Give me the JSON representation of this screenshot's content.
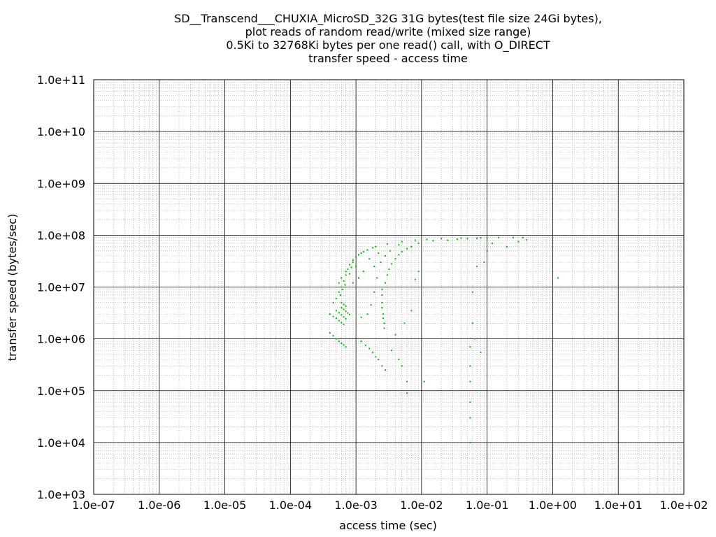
{
  "chart_data": {
    "type": "scatter",
    "title_lines": [
      "SD__Transcend___CHUXIA_MicroSD_32G 31G bytes(test file size 24Gi bytes),",
      "plot reads of random read/write (mixed size range)",
      "0.5Ki to 32768Ki bytes per one read() call, with O_DIRECT",
      "transfer speed - access time"
    ],
    "xlabel": "access time (sec)",
    "ylabel": "transfer speed (bytes/sec)",
    "x_scale": "log",
    "y_scale": "log",
    "xlim": [
      1e-07,
      100
    ],
    "ylim": [
      1000,
      100000000000.0
    ],
    "x_ticks": [
      "1.0e-07",
      "1.0e-06",
      "1.0e-05",
      "1.0e-04",
      "1.0e-03",
      "1.0e-02",
      "1.0e-01",
      "1.0e+00",
      "1.0e+01",
      "1.0e+02"
    ],
    "y_ticks": [
      "1.0e+03",
      "1.0e+04",
      "1.0e+05",
      "1.0e+06",
      "1.0e+07",
      "1.0e+08",
      "1.0e+09",
      "1.0e+10",
      "1.0e+11"
    ],
    "grid": true,
    "series_color": "#00bb00",
    "points": [
      [
        0.0004,
        1300000
      ],
      [
        0.00045,
        1150000
      ],
      [
        0.0005,
        1000000
      ],
      [
        0.00055,
        900000
      ],
      [
        0.0006,
        820000
      ],
      [
        0.00065,
        760000
      ],
      [
        0.0007,
        700000
      ],
      [
        0.0004,
        3000000
      ],
      [
        0.00045,
        2700000
      ],
      [
        0.0005,
        2500000
      ],
      [
        0.00055,
        2250000
      ],
      [
        0.0006,
        2050000
      ],
      [
        0.00065,
        1900000
      ],
      [
        0.0005,
        3500000
      ],
      [
        0.00055,
        3200000
      ],
      [
        0.0006,
        2900000
      ],
      [
        0.00065,
        2650000
      ],
      [
        0.0007,
        2450000
      ],
      [
        0.0006,
        4000000
      ],
      [
        0.00065,
        3700000
      ],
      [
        0.0007,
        3400000
      ],
      [
        0.00075,
        3150000
      ],
      [
        0.0008,
        2950000
      ],
      [
        0.0006,
        5000000
      ],
      [
        0.00065,
        4600000
      ],
      [
        0.0007,
        4300000
      ],
      [
        0.00045,
        5000000
      ],
      [
        0.0005,
        6000000
      ],
      [
        0.00055,
        8000000
      ],
      [
        0.0006,
        10000000
      ],
      [
        0.00065,
        13000000
      ],
      [
        0.0007,
        17000000
      ],
      [
        0.00075,
        22000000
      ],
      [
        0.0008,
        27000000
      ],
      [
        0.0009,
        33000000
      ],
      [
        0.001,
        38000000
      ],
      [
        0.0012,
        45000000
      ],
      [
        0.0015,
        52000000
      ],
      [
        0.002,
        60000000
      ],
      [
        0.003,
        68000000
      ],
      [
        0.005,
        75000000
      ],
      [
        0.008,
        80000000
      ],
      [
        0.012,
        83000000
      ],
      [
        0.02,
        86000000
      ],
      [
        0.04,
        88000000
      ],
      [
        0.08,
        89000000
      ],
      [
        0.15,
        90000000
      ],
      [
        0.25,
        90000000
      ],
      [
        0.35,
        90000000
      ],
      [
        0.00055,
        12000000
      ],
      [
        0.0006,
        15000000
      ],
      [
        0.00062,
        9000000
      ],
      [
        0.00058,
        7000000
      ],
      [
        0.0007,
        20000000
      ],
      [
        0.00068,
        11000000
      ],
      [
        0.0008,
        18000000
      ],
      [
        0.00085,
        24000000
      ],
      [
        0.0009,
        30000000
      ],
      [
        0.0011,
        42000000
      ],
      [
        0.0013,
        48000000
      ],
      [
        0.0018,
        57000000
      ],
      [
        0.0025,
        9000000
      ],
      [
        0.0025,
        7000000
      ],
      [
        0.0025,
        5000000
      ],
      [
        0.0025,
        4000000
      ],
      [
        0.0026,
        3000000
      ],
      [
        0.0026,
        2500000
      ],
      [
        0.0027,
        2000000
      ],
      [
        0.0027,
        1600000
      ],
      [
        0.0028,
        12000000
      ],
      [
        0.003,
        17000000
      ],
      [
        0.0032,
        22000000
      ],
      [
        0.0035,
        28000000
      ],
      [
        0.004,
        35000000
      ],
      [
        0.0045,
        42000000
      ],
      [
        0.005,
        48000000
      ],
      [
        0.006,
        55000000
      ],
      [
        0.007,
        60000000
      ],
      [
        0.0025,
        300000
      ],
      [
        0.0022,
        400000
      ],
      [
        0.002,
        450000
      ],
      [
        0.0018,
        550000
      ],
      [
        0.0016,
        650000
      ],
      [
        0.0014,
        750000
      ],
      [
        0.0012,
        900000
      ],
      [
        0.0028,
        250000
      ],
      [
        0.0015,
        3000000
      ],
      [
        0.0012,
        2600000
      ],
      [
        0.0017,
        4500000
      ],
      [
        0.0019,
        8000000
      ],
      [
        0.0021,
        15000000
      ],
      [
        0.0035,
        600000
      ],
      [
        0.004,
        1200000
      ],
      [
        0.0045,
        400000
      ],
      [
        0.005,
        300000
      ],
      [
        0.006,
        150000
      ],
      [
        0.006,
        90000
      ],
      [
        0.0055,
        2000000
      ],
      [
        0.007,
        3500000
      ],
      [
        0.008,
        14000000
      ],
      [
        0.009,
        20000000
      ],
      [
        0.011,
        150000
      ],
      [
        0.055,
        700000
      ],
      [
        0.055,
        300000
      ],
      [
        0.055,
        150000
      ],
      [
        0.055,
        60000
      ],
      [
        0.055,
        30000
      ],
      [
        0.055,
        10000
      ],
      [
        0.06,
        2000000
      ],
      [
        0.065,
        1000000
      ],
      [
        0.06,
        8000000
      ],
      [
        0.07,
        25000000
      ],
      [
        0.08,
        550000
      ],
      [
        0.09,
        30000000
      ],
      [
        0.1,
        50000000
      ],
      [
        0.12,
        70000000
      ],
      [
        0.2,
        60000000
      ],
      [
        0.3,
        75000000
      ],
      [
        0.4,
        82000000
      ],
      [
        1.2,
        15000000
      ],
      [
        0.001,
        25000000
      ],
      [
        0.0011,
        15000000
      ],
      [
        0.0009,
        12000000
      ],
      [
        0.0013,
        20000000
      ],
      [
        0.0016,
        35000000
      ],
      [
        0.0019,
        25000000
      ],
      [
        0.0022,
        45000000
      ],
      [
        0.0024,
        30000000
      ],
      [
        0.0028,
        40000000
      ],
      [
        0.0033,
        50000000
      ],
      [
        0.0045,
        65000000
      ],
      [
        0.009,
        70000000
      ],
      [
        0.015,
        78000000
      ],
      [
        0.025,
        80000000
      ],
      [
        0.035,
        84000000
      ],
      [
        0.05,
        86000000
      ],
      [
        0.07,
        87000000
      ],
      [
        0.1,
        88000000
      ]
    ]
  }
}
